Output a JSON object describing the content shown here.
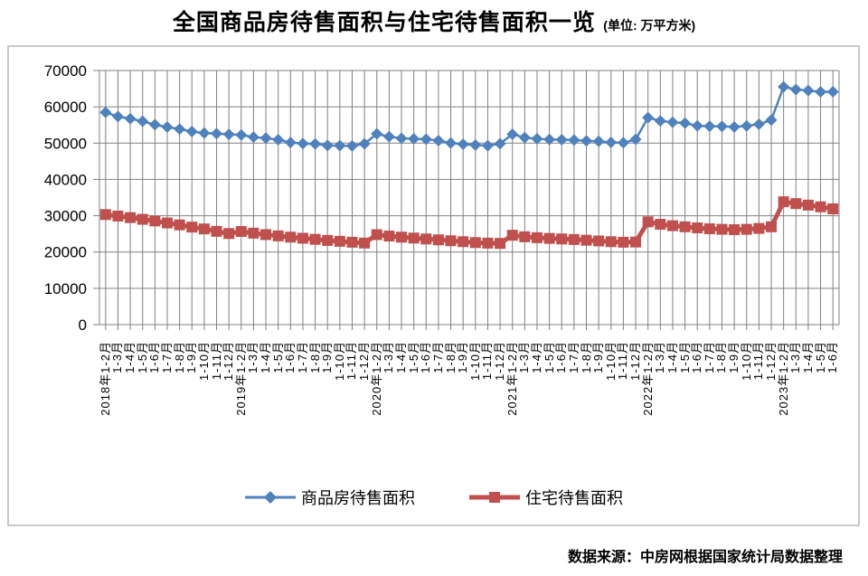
{
  "title": {
    "main": "全国商品房待售面积与住宅待售面积一览",
    "unit": "(单位: 万平方米)"
  },
  "source_note": "数据来源：中房网根据国家统计局数据整理",
  "colors": {
    "gridline": "#808080",
    "axis": "#808080",
    "chart_border": "#C9C9C9",
    "text": "#000000",
    "series1": "#4F81BD",
    "series2": "#C0504D"
  },
  "chart_data": {
    "type": "line",
    "title": "全国商品房待售面积与住宅待售面积一览",
    "unit": "万平方米",
    "xlabel": "",
    "ylabel": "",
    "ylim": [
      0,
      70000
    ],
    "ytick_interval": 10000,
    "ytick_labels": [
      "0",
      "10000",
      "20000",
      "30000",
      "40000",
      "50000",
      "60000",
      "70000"
    ],
    "grid": "both",
    "legend_position": "bottom",
    "categories": [
      "2018年1-2月",
      "1-3月",
      "1-4月",
      "1-5月",
      "1-6月",
      "1-7月",
      "1-8月",
      "1-9月",
      "1-10月",
      "1-11月",
      "1-12月",
      "2019年1-2月",
      "1-3月",
      "1-4月",
      "1-5月",
      "1-6月",
      "1-7月",
      "1-8月",
      "1-9月",
      "1-10月",
      "1-11月",
      "1-12月",
      "2020年1-2月",
      "1-3月",
      "1-4月",
      "1-5月",
      "1-6月",
      "1-7月",
      "1-8月",
      "1-9月",
      "1-10月",
      "1-11月",
      "1-12月",
      "2021年1-2月",
      "1-3月",
      "1-4月",
      "1-5月",
      "1-6月",
      "1-7月",
      "1-8月",
      "1-9月",
      "1-10月",
      "1-11月",
      "1-12月",
      "2022年1-2月",
      "1-3月",
      "1-4月",
      "1-5月",
      "1-6月",
      "1-7月",
      "1-8月",
      "1-9月",
      "1-10月",
      "1-11月",
      "1-12月",
      "2023年1-2月",
      "1-3月",
      "1-4月",
      "1-5月",
      "1-6月"
    ],
    "series": [
      {
        "name": "商品房待售面积",
        "color": "#4F81BD",
        "marker": "diamond",
        "values": [
          58468,
          57329,
          56726,
          56010,
          55083,
          54428,
          53873,
          53191,
          52789,
          52627,
          52414,
          52251,
          51646,
          51380,
          50928,
          50162,
          49876,
          49784,
          49346,
          49323,
          49221,
          49821,
          52563,
          51779,
          51312,
          51184,
          51083,
          50682,
          50052,
          49707,
          49492,
          49287,
          49850,
          52425,
          51544,
          51177,
          51005,
          50957,
          50864,
          50631,
          50496,
          50203,
          50092,
          51023,
          57026,
          56113,
          55735,
          55511,
          54784,
          54655,
          54605,
          54475,
          54734,
          55203,
          56366,
          65528,
          64770,
          64487,
          64120,
          64159
        ]
      },
      {
        "name": "住宅待售面积",
        "color": "#C0504D",
        "marker": "square",
        "values": [
          30318,
          29910,
          29480,
          29010,
          28560,
          28010,
          27480,
          26870,
          26360,
          25700,
          25091,
          25656,
          25200,
          24800,
          24450,
          24100,
          23800,
          23500,
          23200,
          22950,
          22700,
          22473,
          24782,
          24400,
          24100,
          23850,
          23600,
          23350,
          23100,
          22850,
          22600,
          22450,
          22379,
          24614,
          24200,
          23950,
          23750,
          23600,
          23450,
          23250,
          23050,
          22850,
          22700,
          22761,
          28313,
          27650,
          27250,
          26950,
          26650,
          26400,
          26250,
          26150,
          26250,
          26500,
          26947,
          33852,
          33340,
          32920,
          32450,
          31893
        ]
      }
    ]
  }
}
